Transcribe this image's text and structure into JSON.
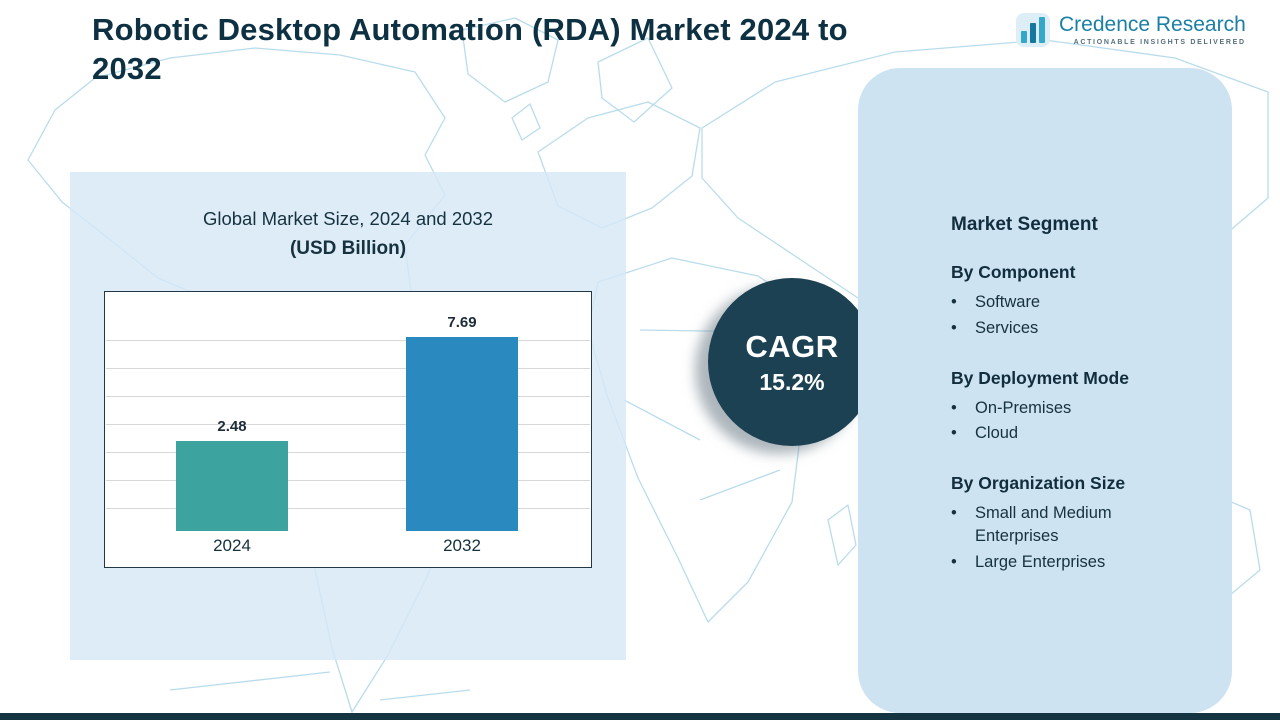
{
  "header": {
    "title": "Robotic Desktop Automation (RDA) Market 2024 to 2032",
    "logo": {
      "name": "Credence Research",
      "tagline": "Actionable Insights Delivered"
    }
  },
  "chart_panel": {
    "title_line1": "Global Market Size, 2024 and 2032",
    "title_line2": "(USD Billion)"
  },
  "chart_data": {
    "type": "bar",
    "title": "Global Market Size, 2024 and 2032 (USD Billion)",
    "categories": [
      "2024",
      "2032"
    ],
    "values": [
      2.48,
      7.69
    ],
    "unit": "USD Billion",
    "ylim": [
      0,
      8.5
    ],
    "grid": true,
    "legend": "none",
    "bar_colors": [
      "#3da39e",
      "#2a8ac0"
    ]
  },
  "cagr": {
    "label": "CAGR",
    "value": "15.2%"
  },
  "segments": {
    "heading": "Market Segment",
    "bullet": "•",
    "groups": [
      {
        "title": "By Component",
        "items": [
          "Software",
          "Services"
        ]
      },
      {
        "title": "By Deployment Mode",
        "items": [
          "On-Premises",
          "Cloud"
        ]
      },
      {
        "title": "By Organization Size",
        "items": [
          "Small and Medium Enterprises",
          "Large Enterprises"
        ]
      }
    ]
  },
  "colors": {
    "title_text": "#0d3142",
    "chart_panel_bg": "#d7e8f6",
    "segment_panel_bg": "#cde3f2",
    "cagr_circle": "#1b4152",
    "bar_2024": "#3da39e",
    "bar_2032": "#2a8ac0",
    "map_line": "#b9dcec",
    "bottom_bar": "#133440"
  }
}
